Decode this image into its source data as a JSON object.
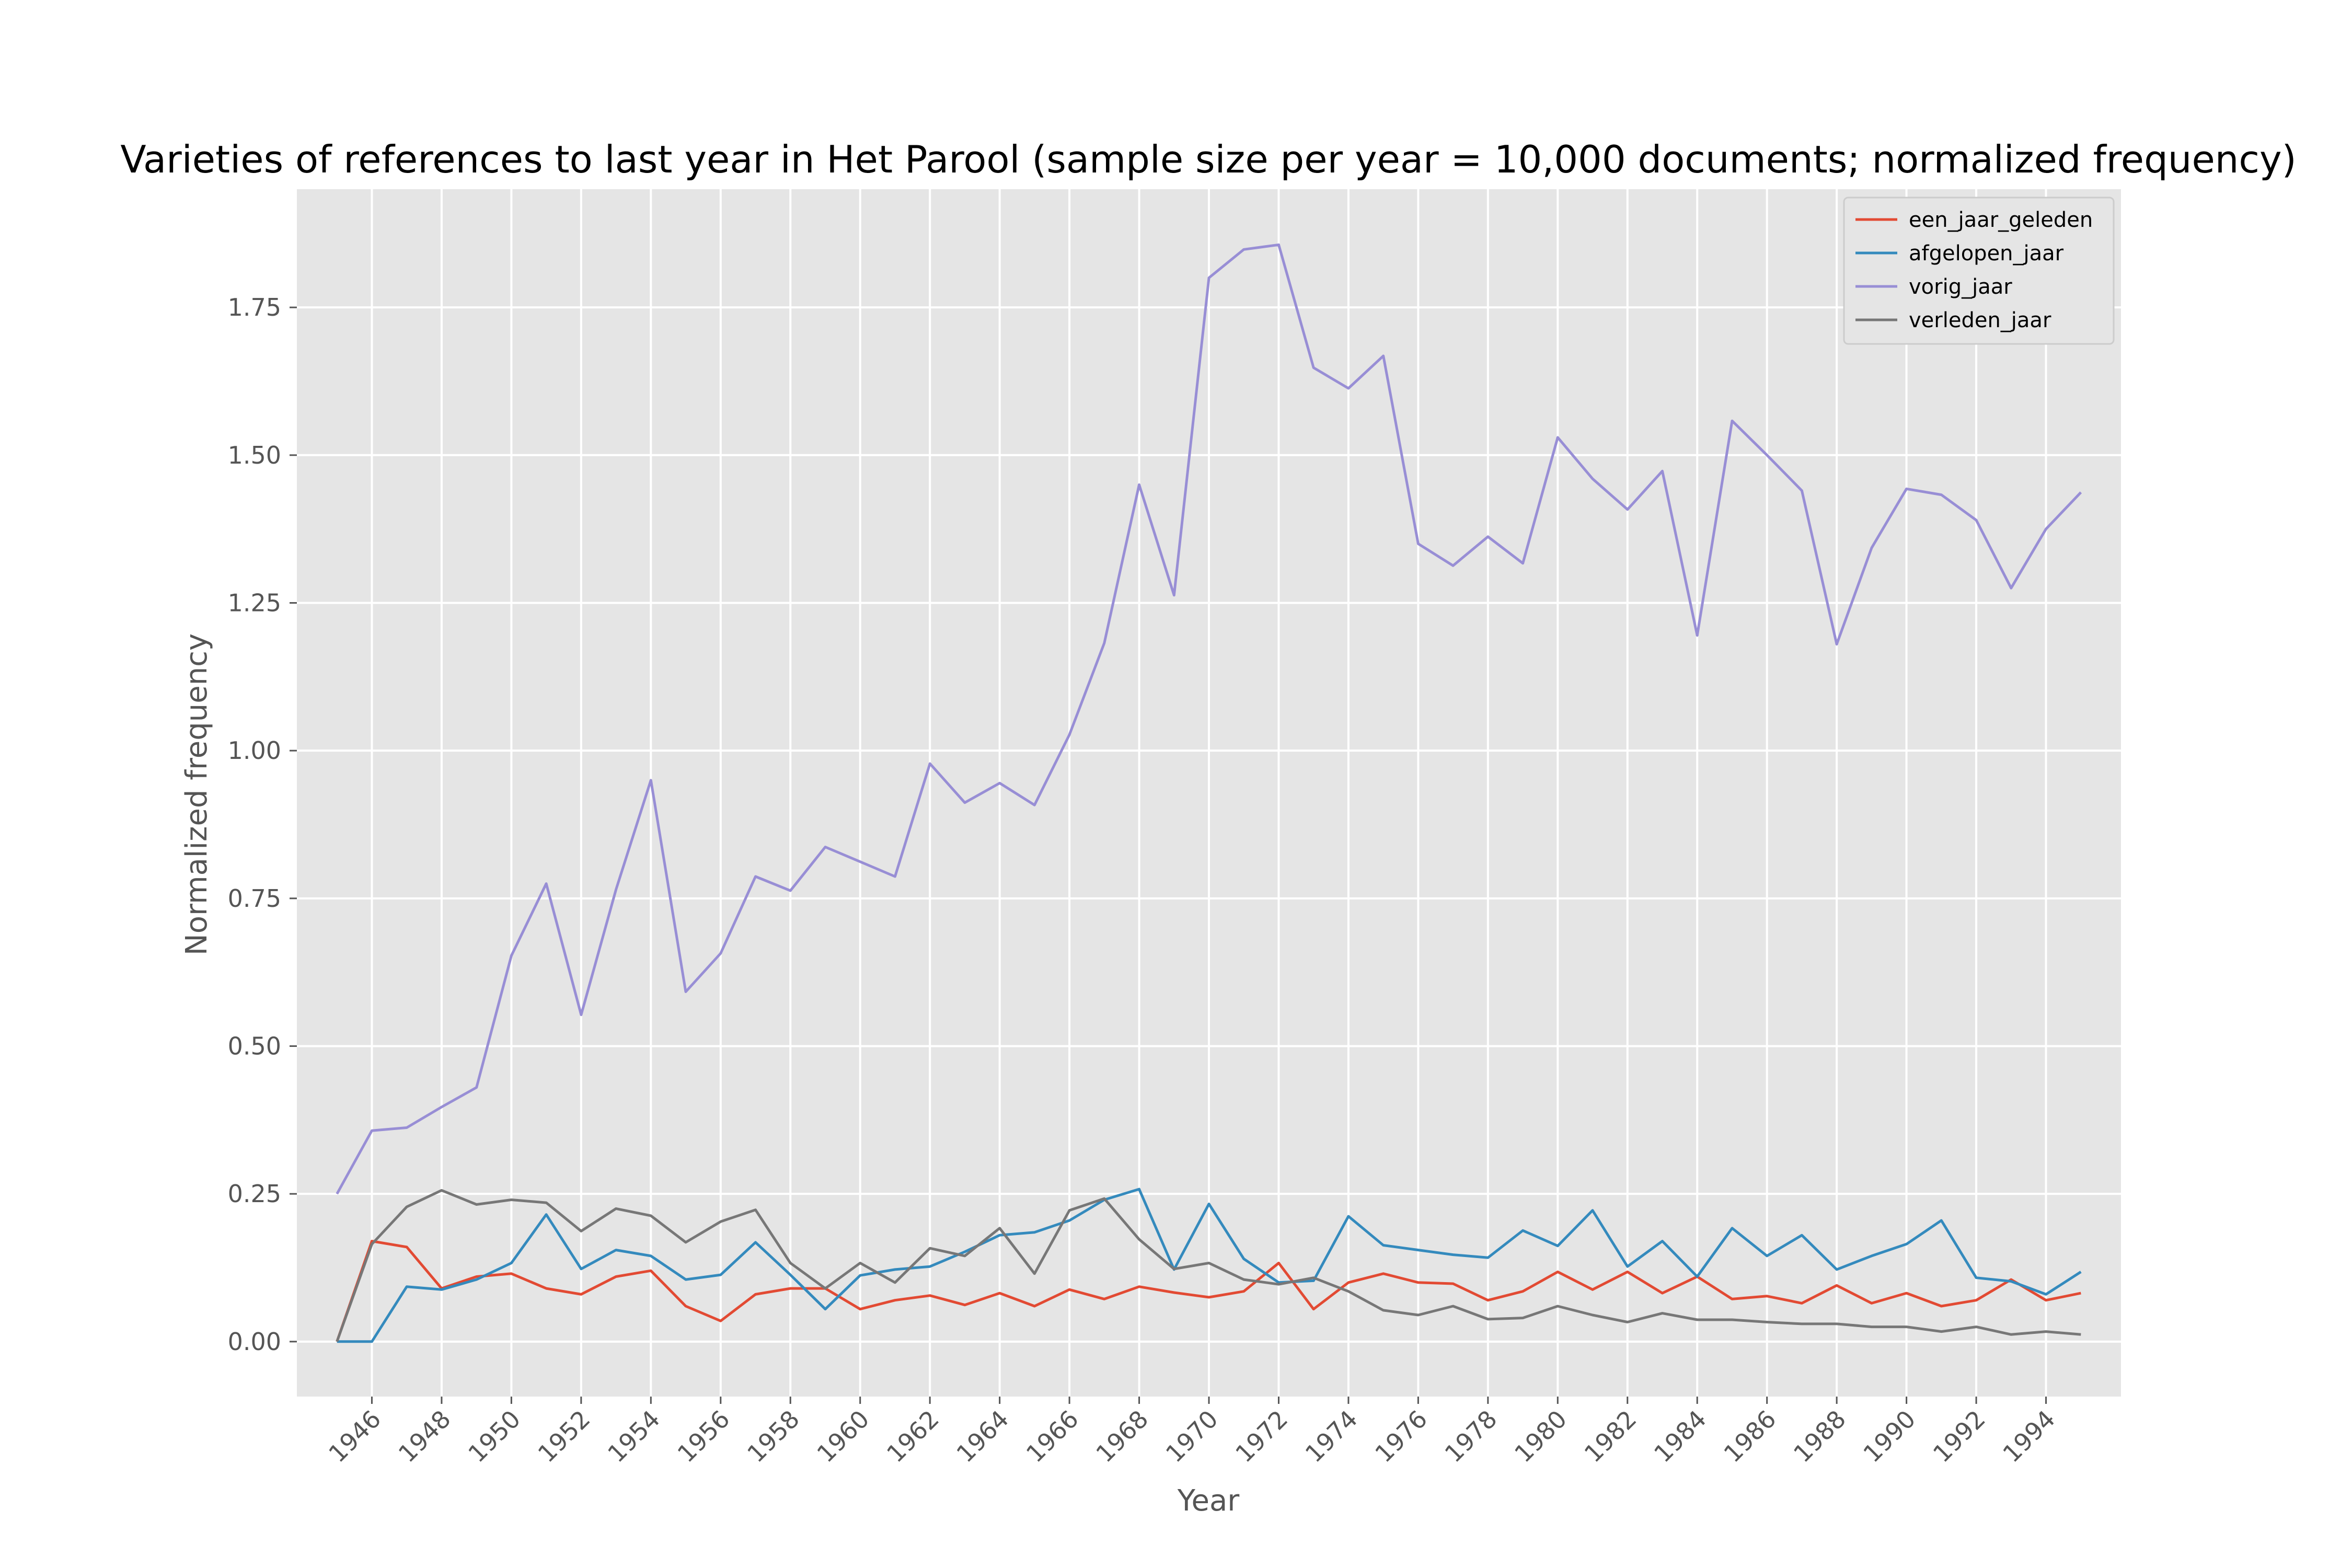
{
  "chart_data": {
    "type": "line",
    "title": "Varieties of references to last year in Het Parool (sample size per year = 10,000 documents; normalized frequency)",
    "xlabel": "Year",
    "ylabel": "Normalized frequency",
    "xlim": [
      1943.85,
      1996.15
    ],
    "ylim": [
      -0.093,
      1.95
    ],
    "x_ticks": [
      1946,
      1948,
      1950,
      1952,
      1954,
      1956,
      1958,
      1960,
      1962,
      1964,
      1966,
      1968,
      1970,
      1972,
      1974,
      1976,
      1978,
      1980,
      1982,
      1984,
      1986,
      1988,
      1990,
      1992,
      1994
    ],
    "y_ticks": [
      0.0,
      0.25,
      0.5,
      0.75,
      1.0,
      1.25,
      1.5,
      1.75
    ],
    "y_tick_labels": [
      "0.00",
      "0.25",
      "0.50",
      "0.75",
      "1.00",
      "1.25",
      "1.50",
      "1.75"
    ],
    "grid": true,
    "legend_position": "top-right",
    "x": [
      1945,
      1946,
      1947,
      1948,
      1949,
      1950,
      1951,
      1952,
      1953,
      1954,
      1955,
      1956,
      1957,
      1958,
      1959,
      1960,
      1961,
      1962,
      1963,
      1964,
      1965,
      1966,
      1967,
      1968,
      1969,
      1970,
      1971,
      1972,
      1973,
      1974,
      1975,
      1976,
      1977,
      1978,
      1979,
      1980,
      1981,
      1982,
      1983,
      1984,
      1985,
      1986,
      1987,
      1988,
      1989,
      1990,
      1991,
      1992,
      1993,
      1994,
      1995
    ],
    "series": [
      {
        "name": "een_jaar_geleden",
        "color": "#E24A33",
        "values": [
          0.0,
          0.17,
          0.16,
          0.09,
          0.11,
          0.115,
          0.09,
          0.08,
          0.11,
          0.12,
          0.06,
          0.035,
          0.08,
          0.09,
          0.09,
          0.055,
          0.07,
          0.078,
          0.062,
          0.082,
          0.06,
          0.088,
          0.072,
          0.093,
          0.083,
          0.075,
          0.085,
          0.133,
          0.055,
          0.1,
          0.115,
          0.1,
          0.098,
          0.07,
          0.085,
          0.118,
          0.088,
          0.118,
          0.082,
          0.11,
          0.072,
          0.077,
          0.065,
          0.095,
          0.065,
          0.082,
          0.06,
          0.07,
          0.105,
          0.07,
          0.082
        ]
      },
      {
        "name": "afgelopen_jaar",
        "color": "#348ABD",
        "values": [
          0.0,
          0.0,
          0.093,
          0.088,
          0.105,
          0.133,
          0.215,
          0.123,
          0.155,
          0.145,
          0.105,
          0.113,
          0.168,
          0.113,
          0.055,
          0.112,
          0.122,
          0.127,
          0.152,
          0.18,
          0.185,
          0.205,
          0.24,
          0.258,
          0.122,
          0.233,
          0.14,
          0.1,
          0.103,
          0.212,
          0.163,
          0.155,
          0.147,
          0.142,
          0.188,
          0.162,
          0.222,
          0.127,
          0.17,
          0.11,
          0.192,
          0.145,
          0.18,
          0.122,
          0.145,
          0.165,
          0.205,
          0.108,
          0.102,
          0.08,
          0.118
        ]
      },
      {
        "name": "vorig_jaar",
        "color": "#988ED5",
        "values": [
          0.25,
          0.357,
          0.362,
          0.397,
          0.43,
          0.653,
          0.775,
          0.553,
          0.765,
          0.95,
          0.592,
          0.657,
          0.787,
          0.763,
          0.837,
          0.812,
          0.787,
          0.978,
          0.912,
          0.945,
          0.908,
          1.027,
          1.182,
          1.45,
          1.263,
          1.8,
          1.848,
          1.856,
          1.648,
          1.613,
          1.668,
          1.35,
          1.313,
          1.362,
          1.317,
          1.53,
          1.46,
          1.408,
          1.473,
          1.195,
          1.558,
          1.5,
          1.44,
          1.18,
          1.343,
          1.443,
          1.433,
          1.39,
          1.275,
          1.375,
          1.437
        ]
      },
      {
        "name": "verleden_jaar",
        "color": "#777777",
        "values": [
          0.0,
          0.165,
          0.228,
          0.256,
          0.232,
          0.24,
          0.235,
          0.187,
          0.225,
          0.213,
          0.168,
          0.203,
          0.223,
          0.133,
          0.09,
          0.133,
          0.1,
          0.158,
          0.145,
          0.192,
          0.115,
          0.222,
          0.242,
          0.173,
          0.123,
          0.133,
          0.105,
          0.097,
          0.108,
          0.085,
          0.053,
          0.045,
          0.06,
          0.038,
          0.04,
          0.06,
          0.045,
          0.033,
          0.048,
          0.037,
          0.037,
          0.033,
          0.03,
          0.03,
          0.025,
          0.025,
          0.017,
          0.025,
          0.012,
          0.017,
          0.012
        ]
      }
    ]
  }
}
